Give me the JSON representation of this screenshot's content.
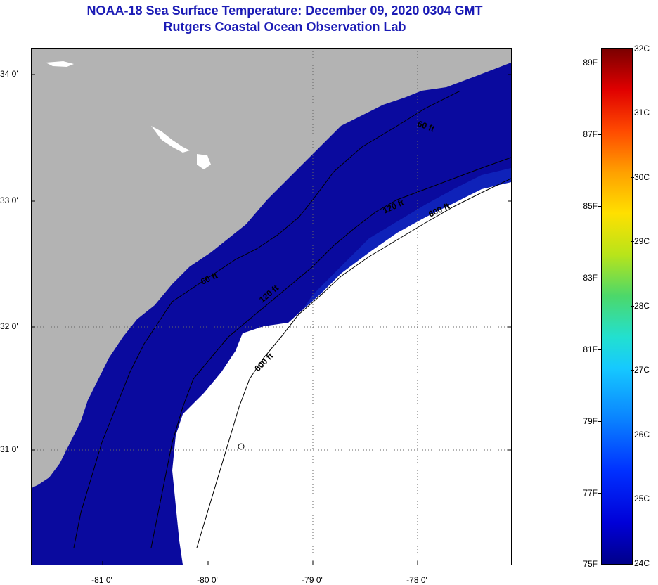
{
  "title": {
    "line1": "NOAA-18 Sea Surface Temperature:  December 09, 2020 0304 GMT",
    "line2": "Rutgers Coastal Ocean Observation Lab"
  },
  "map": {
    "latitude_labels": [
      "34 0'",
      "33 0'",
      "32 0'",
      "31 0'"
    ],
    "longitude_labels": [
      "-81 0'",
      "-80 0'",
      "-79 0'",
      "-78 0'"
    ],
    "isobath_labels": [
      "60 ft",
      "120 ft",
      "600 ft",
      "60 ft",
      "120 ft",
      "600 ft"
    ],
    "colors": {
      "land": "#b3b3b3",
      "cloud": "#ffffff",
      "water_cold": "#0a0a9e",
      "water_mid": "#1a3fd8"
    }
  },
  "colorbar": {
    "fahrenheit": [
      "89F",
      "87F",
      "85F",
      "83F",
      "81F",
      "79F",
      "77F",
      "75F"
    ],
    "celsius": [
      "32C",
      "31C",
      "30C",
      "29C",
      "28C",
      "27C",
      "26C",
      "25C",
      "24C"
    ]
  }
}
